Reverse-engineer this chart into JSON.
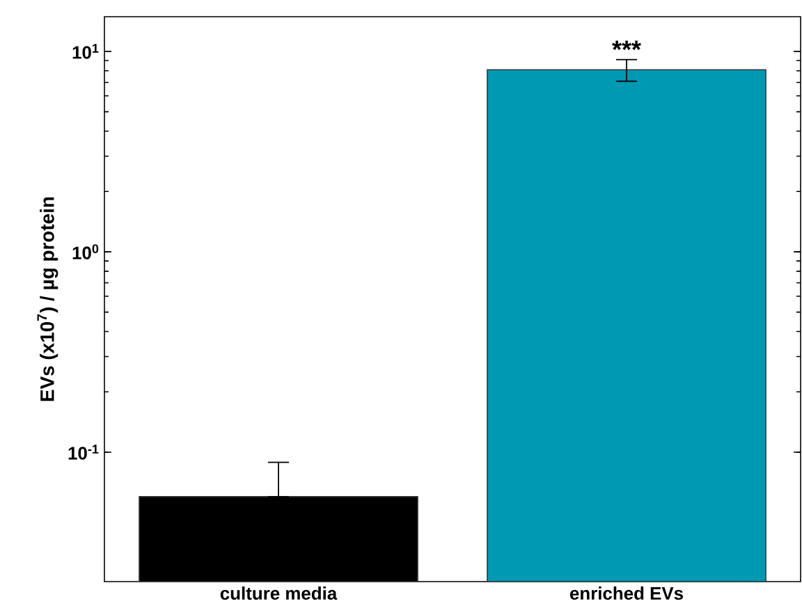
{
  "chart_data": {
    "type": "bar",
    "ylabel": "EVs (x10$^{7}$) / µg protein",
    "categories": [
      "culture media",
      "enriched EVs"
    ],
    "values": [
      0.06,
      8.1
    ],
    "colors": [
      "#000000",
      "#0099b4"
    ],
    "errors": [
      [
        0.06,
        0.089
      ],
      [
        7.1,
        9.1
      ]
    ],
    "log": "y",
    "ylim": [
      0.0226,
      14.9
    ],
    "yticks": [
      {
        "value": 0.1,
        "label": "10$^{-1}$"
      },
      {
        "value": 1,
        "label": "10$^{0}$"
      },
      {
        "value": 10,
        "label": "10$^{1}$"
      }
    ],
    "grid": false,
    "annotations": [
      "***"
    ]
  }
}
